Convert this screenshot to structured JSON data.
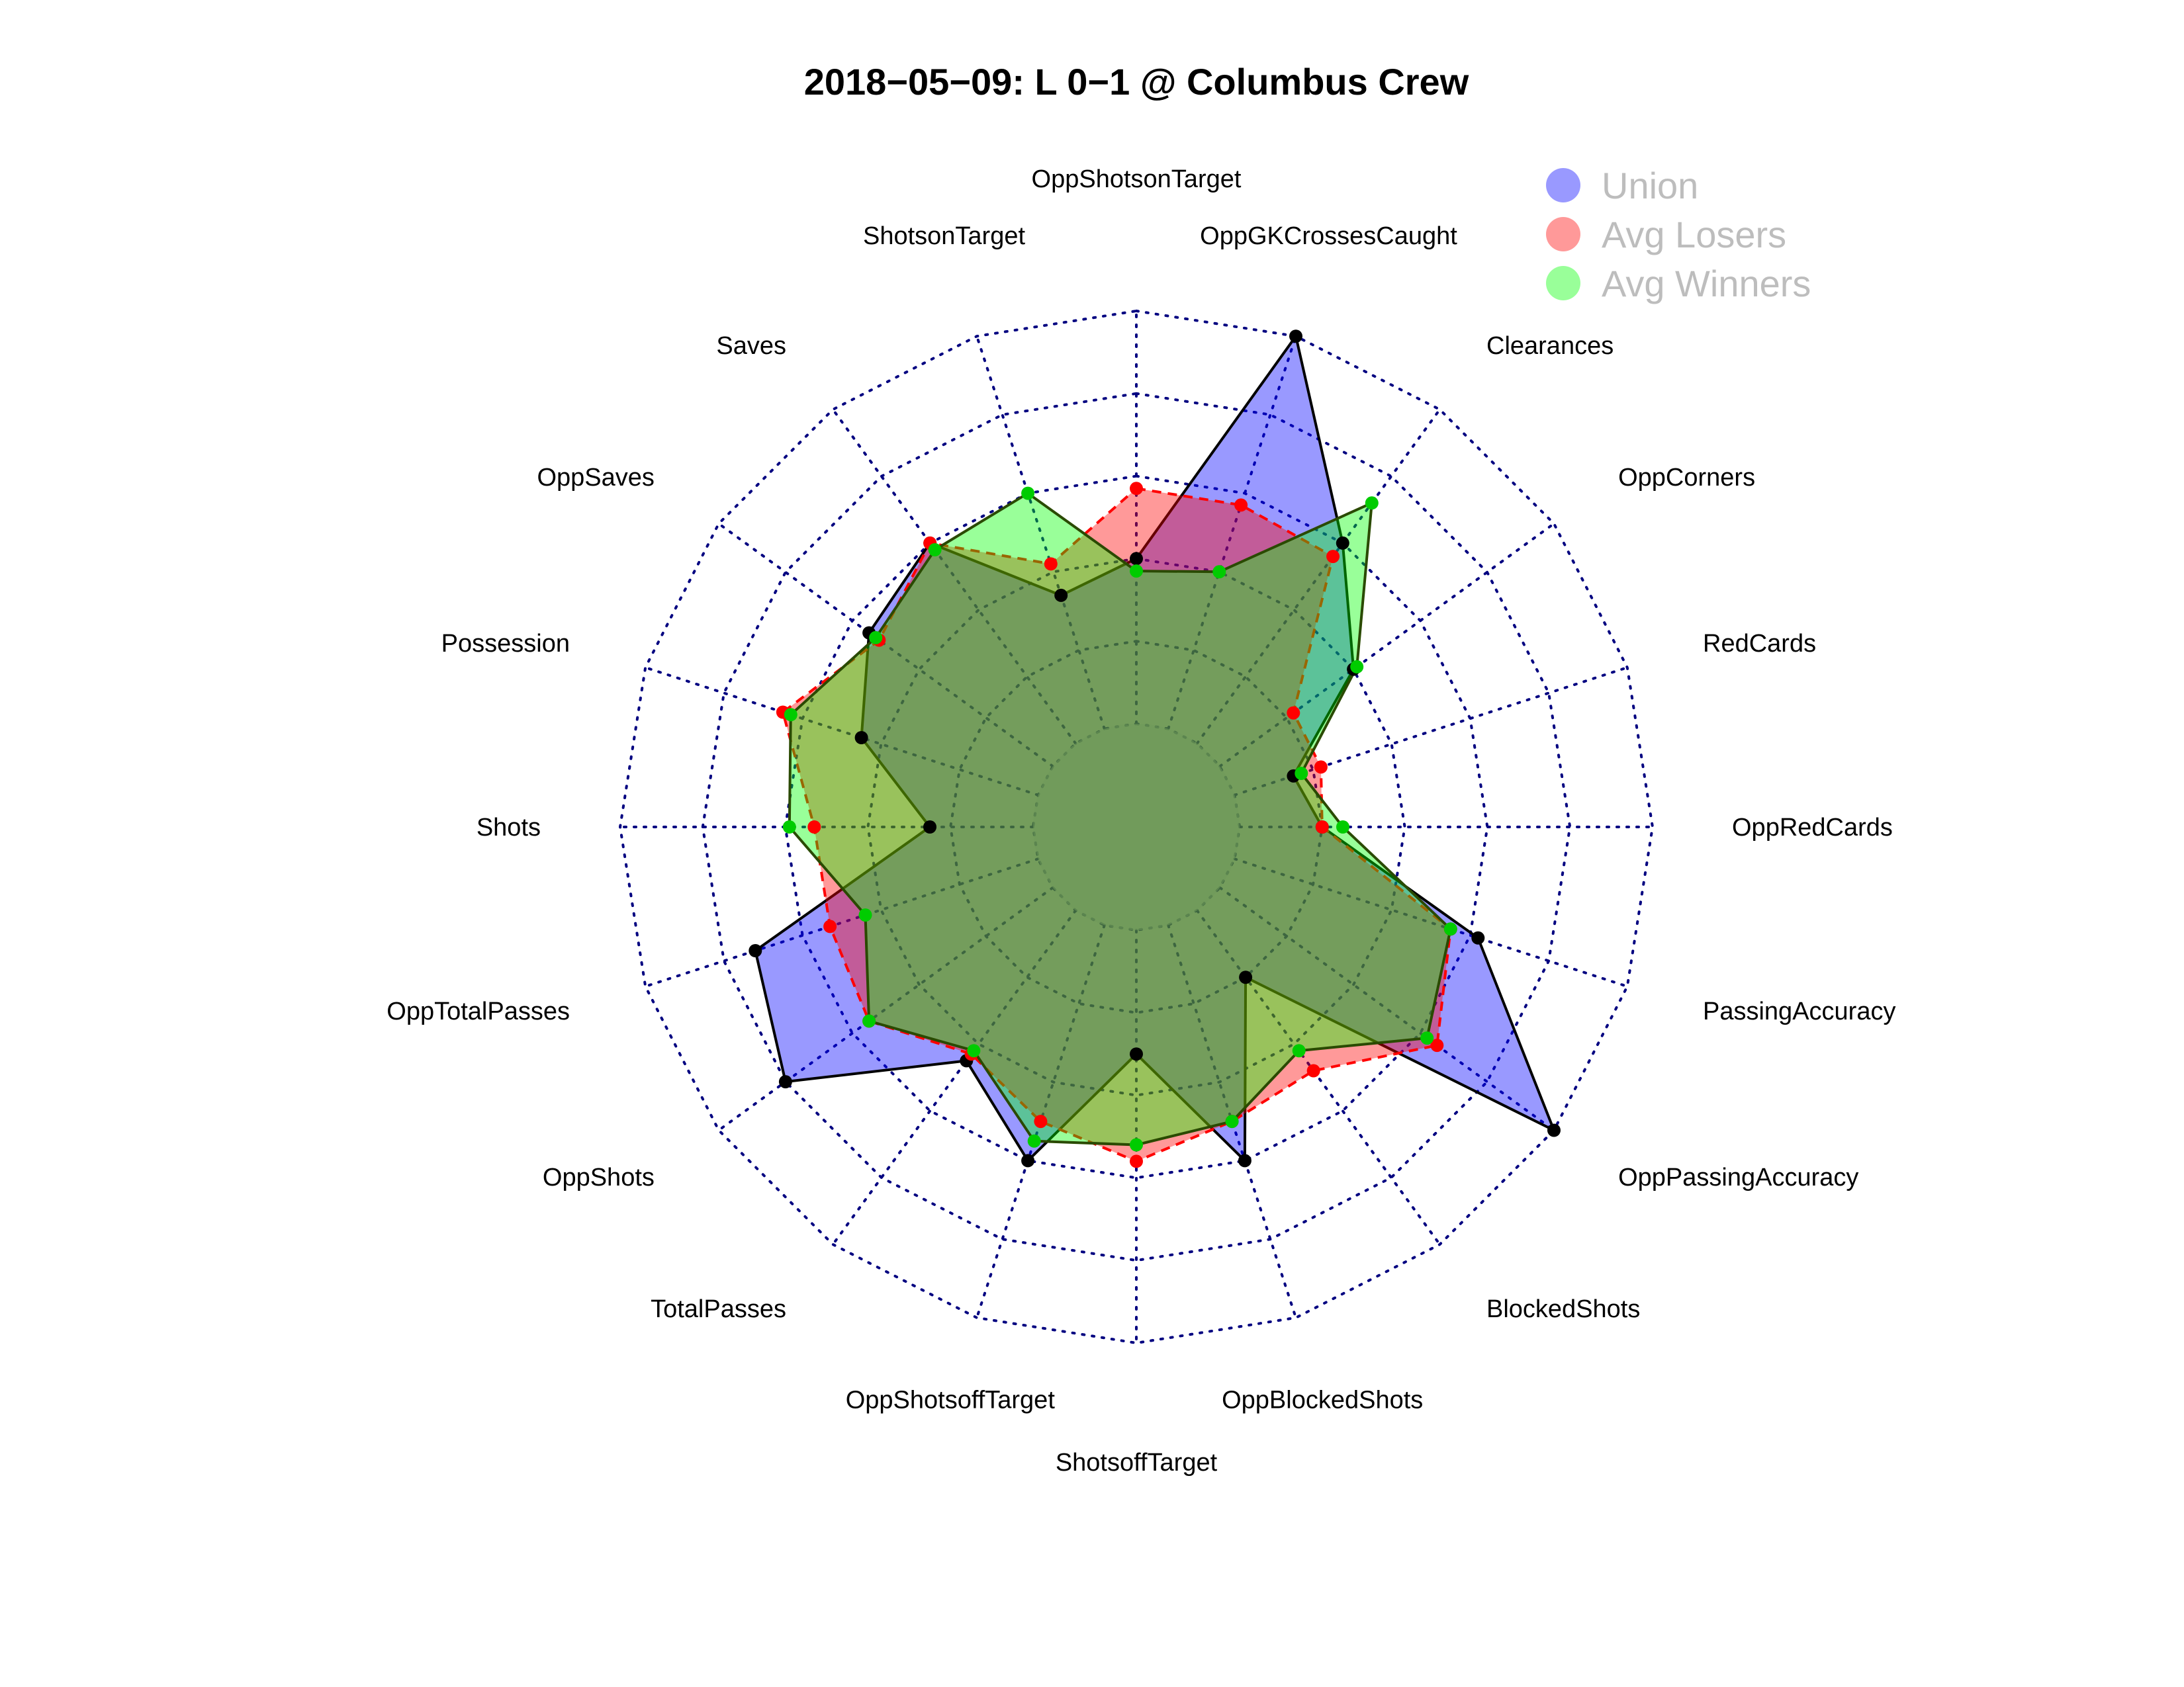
{
  "chart_data": {
    "type": "radar",
    "title": "2018−05−09:  L 0−1   @ Columbus Crew",
    "rmax": 1,
    "rings": 5,
    "grid": true,
    "legend_position": "top-right",
    "categories": [
      "OppShotsonTarget",
      "OppGKCrossesCaught",
      "Clearances",
      "OppCorners",
      "RedCards",
      "OppRedCards",
      "PassingAccuracy",
      "OppPassingAccuracy",
      "BlockedShots",
      "OppBlockedShots",
      "ShotsoffTarget",
      "OppShotsoffTarget",
      "TotalPasses",
      "OppShots",
      "OppTotalPasses",
      "Shots",
      "Possession",
      "OppSaves",
      "Saves",
      "ShotsonTarget"
    ],
    "series": [
      {
        "name": "Union",
        "color": "#0000ff",
        "fill_opacity": 0.4,
        "line": "solid",
        "marker_color": "#000000",
        "values": [
          0.4,
          1.0,
          0.6,
          0.4,
          0.15,
          0.2,
          0.62,
          1.0,
          0.2,
          0.6,
          0.3,
          0.6,
          0.45,
          0.8,
          0.72,
          0.25,
          0.45,
          0.55,
          0.6,
          0.34
        ]
      },
      {
        "name": "Avg Losers",
        "color": "#ff0000",
        "fill_opacity": 0.4,
        "line": "dashed",
        "marker_color": "#ff0000",
        "values": [
          0.57,
          0.57,
          0.56,
          0.22,
          0.22,
          0.2,
          0.55,
          0.65,
          0.48,
          0.5,
          0.56,
          0.5,
          0.43,
          0.55,
          0.53,
          0.53,
          0.65,
          0.52,
          0.6,
          0.42
        ]
      },
      {
        "name": "Avg Winners",
        "color": "#00ff00",
        "fill_opacity": 0.4,
        "line": "solid",
        "marker_color": "#00cc00",
        "values": [
          0.37,
          0.4,
          0.72,
          0.41,
          0.17,
          0.25,
          0.55,
          0.62,
          0.42,
          0.5,
          0.52,
          0.55,
          0.42,
          0.55,
          0.44,
          0.59,
          0.63,
          0.53,
          0.58,
          0.6
        ]
      }
    ],
    "overlap_marker_color": "#3a5a00"
  }
}
